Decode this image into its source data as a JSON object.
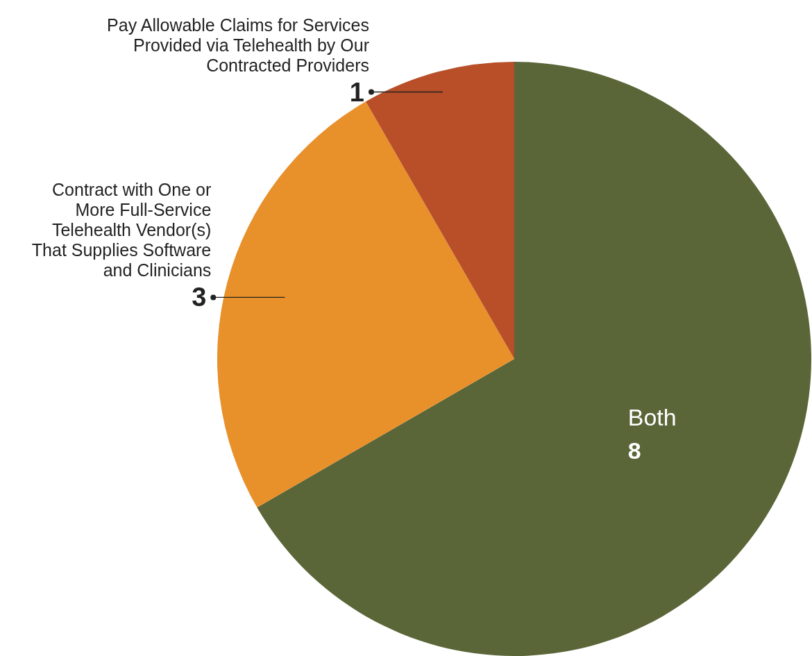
{
  "chart_data": {
    "type": "pie",
    "categories": [
      "Both",
      "Contract with One or More Full-Service Telehealth Vendor(s) That Supplies Software and Clinicians",
      "Pay Allowable Claims for Services Provided via Telehealth by Our Contracted Providers"
    ],
    "values": [
      8,
      3,
      1
    ],
    "colors": [
      "#5a6638",
      "#e8902a",
      "#b84f28"
    ],
    "data_labels": true
  }
}
